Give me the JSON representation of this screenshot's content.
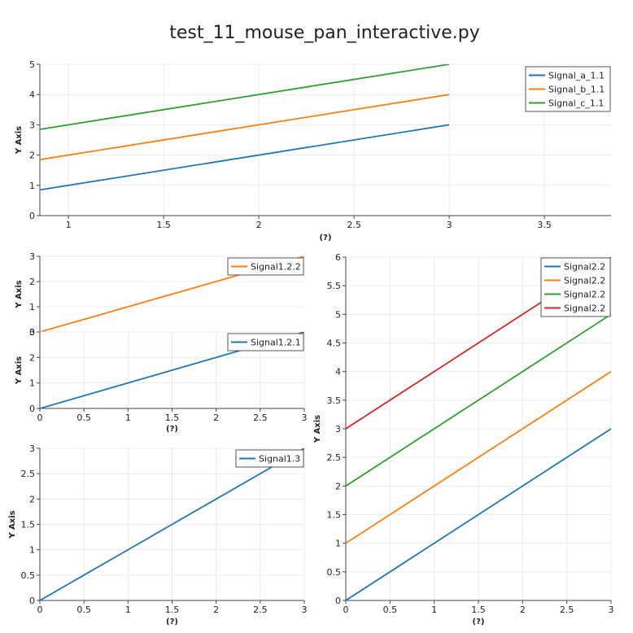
{
  "title": "test_11_mouse_pan_interactive.py",
  "colors": {
    "blue": "#1f77b4",
    "orange": "#ff7f0e",
    "green": "#2ca02c",
    "red": "#d62728",
    "grid": "#ececec",
    "axis": "#444444"
  },
  "chart_data": [
    {
      "id": "p11",
      "type": "line",
      "xlabel": "(?)",
      "ylabel": "Y Axis",
      "xlim": [
        0.85,
        3.85
      ],
      "ylim": [
        0,
        5
      ],
      "xticks": [
        1,
        1.5,
        2,
        2.5,
        3,
        3.5
      ],
      "xtick_labels": [
        "1",
        "1.5",
        "2",
        "2.5",
        "3",
        "3.5"
      ],
      "yticks": [
        0,
        1,
        2,
        3,
        4,
        5
      ],
      "ytick_labels": [
        "0",
        "1",
        "2",
        "3",
        "4",
        "5"
      ],
      "grid": true,
      "legend": "top-right",
      "series": [
        {
          "name": "Signal_a_1.1",
          "color": "#1f77b4",
          "x": [
            0,
            3
          ],
          "y": [
            0,
            3
          ]
        },
        {
          "name": "Signal_b_1.1",
          "color": "#ff7f0e",
          "x": [
            0,
            3
          ],
          "y": [
            1,
            4
          ]
        },
        {
          "name": "Signal_c_1.1",
          "color": "#2ca02c",
          "x": [
            0,
            3
          ],
          "y": [
            2,
            5
          ]
        }
      ]
    },
    {
      "id": "p122",
      "type": "line",
      "xlabel": "",
      "ylabel": "Y Axis",
      "xlim": [
        0,
        3
      ],
      "ylim": [
        0,
        3
      ],
      "xticks": [],
      "xtick_labels": [],
      "yticks": [
        0,
        1,
        2,
        3
      ],
      "ytick_labels": [
        "0",
        "1",
        "2",
        "3"
      ],
      "grid": true,
      "legend": "top-right",
      "series": [
        {
          "name": "Signal1.2.2",
          "color": "#ff7f0e",
          "x": [
            0,
            3
          ],
          "y": [
            0,
            3
          ]
        }
      ]
    },
    {
      "id": "p121",
      "type": "line",
      "xlabel": "(?)",
      "ylabel": "Y Axis",
      "xlim": [
        0,
        3
      ],
      "ylim": [
        0,
        3
      ],
      "xticks": [
        0,
        0.5,
        1,
        1.5,
        2,
        2.5,
        3
      ],
      "xtick_labels": [
        "0",
        "0.5",
        "1",
        "1.5",
        "2",
        "2.5",
        "3"
      ],
      "yticks": [
        0,
        1,
        2,
        3
      ],
      "ytick_labels": [
        "0",
        "1",
        "2",
        "3"
      ],
      "grid": true,
      "legend": "top-right",
      "series": [
        {
          "name": "Signal1.2.1",
          "color": "#1f77b4",
          "x": [
            0,
            3
          ],
          "y": [
            0,
            3
          ]
        }
      ]
    },
    {
      "id": "p13",
      "type": "line",
      "xlabel": "(?)",
      "ylabel": "Y Axis",
      "xlim": [
        0,
        3
      ],
      "ylim": [
        0,
        3
      ],
      "xticks": [
        0,
        0.5,
        1,
        1.5,
        2,
        2.5,
        3
      ],
      "xtick_labels": [
        "0",
        "0.5",
        "1",
        "1.5",
        "2",
        "2.5",
        "3"
      ],
      "yticks": [
        0,
        0.5,
        1,
        1.5,
        2,
        2.5,
        3
      ],
      "ytick_labels": [
        "0",
        "0.5",
        "1",
        "1.5",
        "2",
        "2.5",
        "3"
      ],
      "grid": true,
      "legend": "top-right",
      "series": [
        {
          "name": "Signal1.3",
          "color": "#1f77b4",
          "x": [
            0,
            3
          ],
          "y": [
            0,
            3
          ]
        }
      ]
    },
    {
      "id": "p22",
      "type": "line",
      "xlabel": "(?)",
      "ylabel": "Y Axis",
      "xlim": [
        0,
        3
      ],
      "ylim": [
        0,
        6
      ],
      "xticks": [
        0,
        0.5,
        1,
        1.5,
        2,
        2.5,
        3
      ],
      "xtick_labels": [
        "0",
        "0.5",
        "1",
        "1.5",
        "2",
        "2.5",
        "3"
      ],
      "yticks": [
        0,
        0.5,
        1,
        1.5,
        2,
        2.5,
        3,
        3.5,
        4,
        4.5,
        5,
        5.5,
        6
      ],
      "ytick_labels": [
        "0",
        "0.5",
        "1",
        "1.5",
        "2",
        "2.5",
        "3",
        "3.5",
        "4",
        "4.5",
        "5",
        "5.5",
        "6"
      ],
      "grid": true,
      "legend": "top-right",
      "series": [
        {
          "name": "Signal2.2",
          "color": "#1f77b4",
          "x": [
            0,
            3
          ],
          "y": [
            0,
            3
          ]
        },
        {
          "name": "Signal2.2",
          "color": "#ff7f0e",
          "x": [
            0,
            3
          ],
          "y": [
            1,
            4
          ]
        },
        {
          "name": "Signal2.2",
          "color": "#2ca02c",
          "x": [
            0,
            3
          ],
          "y": [
            2,
            5
          ]
        },
        {
          "name": "Signal2.2",
          "color": "#d62728",
          "x": [
            0,
            3
          ],
          "y": [
            3,
            6
          ]
        }
      ]
    }
  ]
}
